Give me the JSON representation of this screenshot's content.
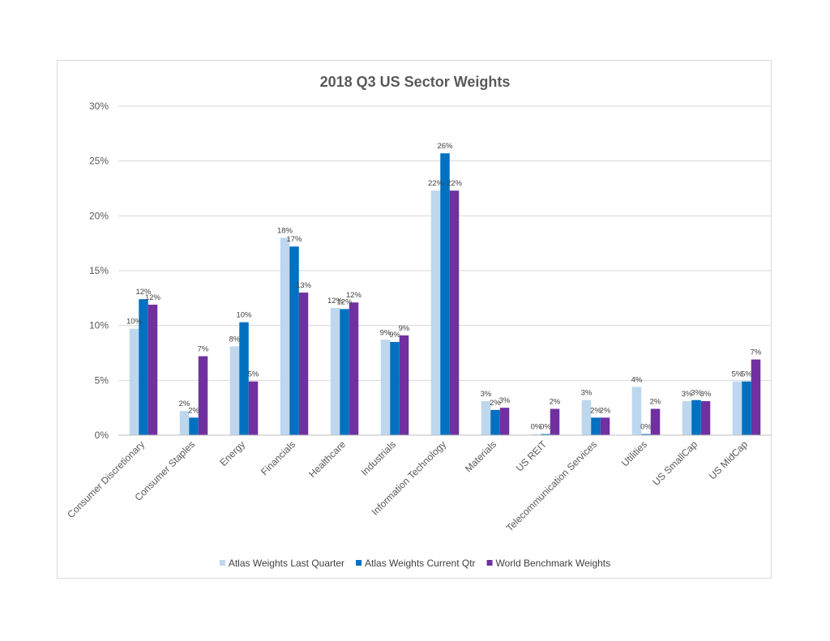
{
  "chart_data": {
    "type": "bar",
    "title": "2018 Q3 US Sector Weights",
    "xlabel": "",
    "ylabel": "",
    "ylim": [
      0,
      30
    ],
    "yticks": [
      "0%",
      "5%",
      "10%",
      "15%",
      "20%",
      "25%",
      "30%"
    ],
    "grid": true,
    "legend_position": "bottom",
    "categories": [
      "Consumer Discretionary",
      "Consumer Staples",
      "Energy",
      "Financials",
      "Healthcare",
      "Industrials",
      "Information Technology",
      "Materials",
      "US REIT",
      "Telecommunication Services",
      "Utilities",
      "US SmallCap",
      "US MidCap"
    ],
    "series": [
      {
        "name": "Atlas Weights Last Quarter",
        "color": "#bdd7ee",
        "values": [
          9.7,
          2.2,
          8.1,
          18.0,
          11.6,
          8.7,
          22.3,
          3.1,
          0.1,
          3.2,
          4.4,
          3.1,
          4.9
        ],
        "labels": [
          "10%",
          "2%",
          "8%",
          "18%",
          "12%",
          "9%",
          "22%",
          "3%",
          "0%",
          "3%",
          "4%",
          "3%",
          "5%"
        ]
      },
      {
        "name": "Atlas Weights Current Qtr",
        "color": "#0070c0",
        "values": [
          12.4,
          1.6,
          10.3,
          17.2,
          11.5,
          8.5,
          25.7,
          2.3,
          0.1,
          1.6,
          0.1,
          3.2,
          4.9
        ],
        "labels": [
          "12%",
          "2%",
          "10%",
          "17%",
          "12%",
          "9%",
          "26%",
          "2%",
          "0%",
          "2%",
          "0%",
          "3%",
          "5%"
        ]
      },
      {
        "name": "World Benchmark Weights",
        "color": "#7030a0",
        "values": [
          11.9,
          7.2,
          4.9,
          13.0,
          12.1,
          9.1,
          22.3,
          2.5,
          2.4,
          1.6,
          2.4,
          3.1,
          6.9
        ],
        "labels": [
          "12%",
          "7%",
          "5%",
          "13%",
          "12%",
          "9%",
          "22%",
          "3%",
          "2%",
          "2%",
          "2%",
          "3%",
          "7%"
        ]
      }
    ]
  }
}
